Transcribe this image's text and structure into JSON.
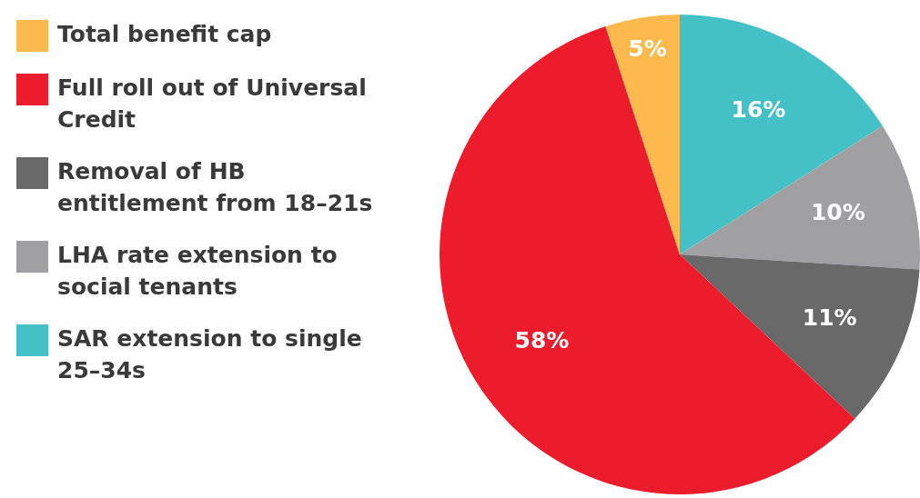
{
  "chart_data": {
    "type": "pie",
    "categories": [
      "Total benefit cap",
      "Full roll out of Universal Credit",
      "Removal of HB entitlement from 18–21s",
      "LHA rate extension to social tenants",
      "SAR extension to single 25–34s"
    ],
    "values": [
      5,
      58,
      11,
      10,
      16
    ],
    "colors": [
      "#fbb94e",
      "#ec1c2c",
      "#696969",
      "#a0a0a3",
      "#43c1c7"
    ],
    "value_labels": [
      "5%",
      "58%",
      "11%",
      "10%",
      "16%"
    ],
    "legend": "left"
  }
}
